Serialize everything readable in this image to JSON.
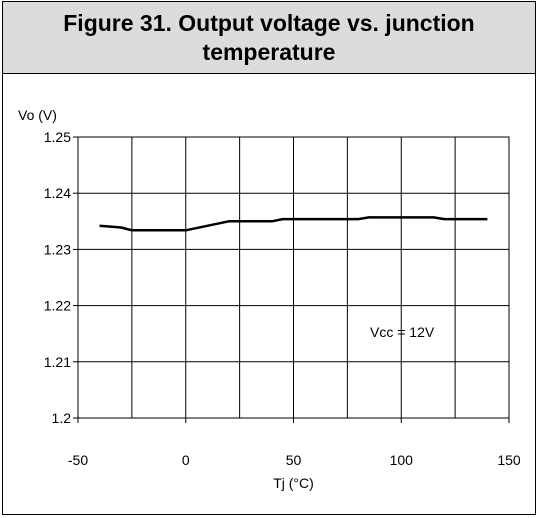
{
  "chart_data": {
    "type": "line",
    "title": "Figure 31. Output voltage vs. junction temperature",
    "xlabel": "Tj (°C)",
    "ylabel": "Vo (V)",
    "xlim": [
      -50,
      150
    ],
    "ylim": [
      1.2,
      1.25
    ],
    "x_ticks": [
      -50,
      0,
      50,
      100,
      150
    ],
    "y_ticks": [
      1.2,
      1.21,
      1.22,
      1.23,
      1.24,
      1.25
    ],
    "x_tick_labels": [
      "-50",
      "0",
      "50",
      "100",
      "150"
    ],
    "y_tick_labels": [
      "1.2",
      "1.21",
      "1.22",
      "1.23",
      "1.24",
      "1.25"
    ],
    "grid": true,
    "annotation": "Vcc = 12V",
    "series": [
      {
        "x": [
          -40,
          -30,
          -25,
          -10,
          0,
          10,
          20,
          40,
          45,
          60,
          80,
          85,
          100,
          115,
          120,
          140
        ],
        "y": [
          1.2342,
          1.2339,
          1.2334,
          1.2334,
          1.2334,
          1.2342,
          1.235,
          1.235,
          1.2354,
          1.2354,
          1.2354,
          1.2357,
          1.2357,
          1.2357,
          1.2354,
          1.2354
        ]
      }
    ],
    "colors": {
      "line": "#000000",
      "grid": "#000000",
      "title_background": "#dcdcdc"
    }
  }
}
